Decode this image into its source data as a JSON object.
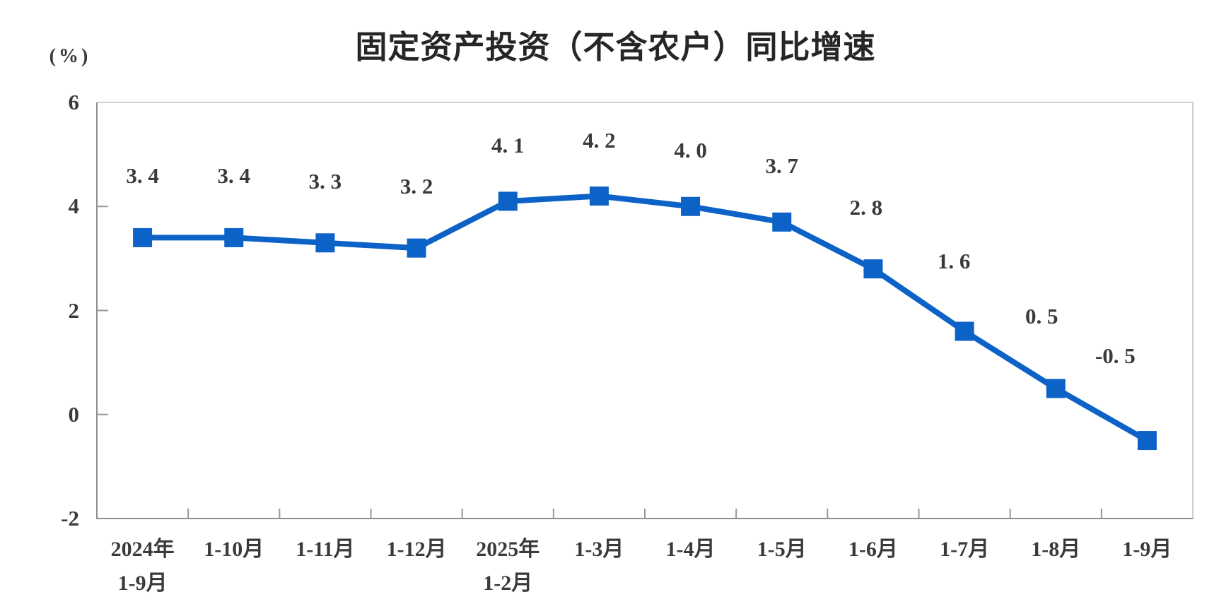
{
  "chart_data": {
    "type": "line",
    "title": "固定资产投资（不含农户）同比增速",
    "ylabel": "(%)",
    "xlabel": "",
    "legend": "none",
    "grid": false,
    "marker": "square",
    "ylim": [
      -2,
      6
    ],
    "y_ticks": {
      "values": [
        6,
        4,
        2,
        0,
        -2
      ],
      "labels": [
        "6",
        "4",
        "2",
        "0",
        "-2"
      ]
    },
    "x_categories": [
      [
        "2024年",
        "1-9月"
      ],
      [
        "1-10月"
      ],
      [
        "1-11月"
      ],
      [
        "1-12月"
      ],
      [
        "2025年",
        "1-2月"
      ],
      [
        "1-3月"
      ],
      [
        "1-4月"
      ],
      [
        "1-5月"
      ],
      [
        "1-6月"
      ],
      [
        "1-7月"
      ],
      [
        "1-8月"
      ],
      [
        "1-9月"
      ]
    ],
    "values": [
      3.4,
      3.4,
      3.3,
      3.2,
      4.1,
      4.2,
      4.0,
      3.7,
      2.8,
      1.6,
      0.5,
      -0.5
    ],
    "point_labels": [
      "3. 4",
      "3. 4",
      "3. 3",
      "3. 2",
      "4. 1",
      "4. 2",
      "4. 0",
      "3. 7",
      "2. 8",
      "1. 6",
      "0. 5",
      "-0. 5"
    ],
    "label_dx": [
      0,
      0,
      0,
      0,
      0,
      0,
      0,
      0,
      -10,
      -15,
      -20,
      -45
    ],
    "label_dy": [
      0,
      0,
      0,
      0,
      8,
      8,
      8,
      8,
      0,
      -12,
      -15,
      -33
    ],
    "colors": {
      "line": "#0C62C6",
      "marker": "#0C62C6",
      "axis_dark": "#8f8f8f",
      "axis_light": "#d0d0d0",
      "tick": "#979797",
      "text": "#3a3a3a",
      "title_text": "#262626"
    }
  }
}
